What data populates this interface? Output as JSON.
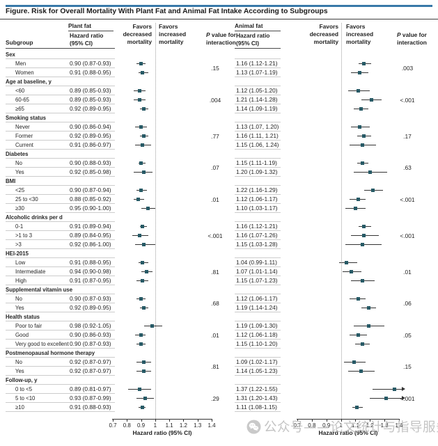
{
  "title": "Figure. Risk for Overall Mortality With Plant Fat and Animal Fat Intake According to Subgroups",
  "columns": {
    "subgroup": "Subgroup",
    "panels": [
      {
        "name": "Plant fat",
        "hr_lines": [
          "Hazard ratio",
          "(95% CI)"
        ],
        "favors_decreased": [
          "Favors",
          "decreased",
          "mortality"
        ],
        "favors_increased": [
          "Favors",
          "increased",
          "mortality"
        ],
        "p_lines": [
          "P value for",
          "interaction"
        ]
      },
      {
        "name": "Animal fat",
        "hr_lines": [
          "Hazard ratio",
          "(95% CI)"
        ],
        "favors_decreased": [
          "Favors",
          "decreased",
          "mortality"
        ],
        "favors_increased": [
          "Favors",
          "increased",
          "mortality"
        ],
        "p_lines": [
          "P value for",
          "interaction"
        ]
      }
    ]
  },
  "axis": {
    "min": 0.7,
    "max": 1.4,
    "reference": 1.0,
    "ticks": [
      "0.7",
      "0.8",
      "0.9",
      "1",
      "1.1",
      "1.2",
      "1.3",
      "1.4"
    ],
    "label": "Hazard ratio (95% CI)"
  },
  "chart_data": {
    "type": "forest",
    "panels": [
      "Plant fat",
      "Animal fat"
    ],
    "xlim": [
      0.7,
      1.4
    ],
    "reference_line": 1.0,
    "xlabel": "Hazard ratio (95% CI)",
    "groups": [
      {
        "label": "Sex",
        "p_values": {
          "plant": ".15",
          "animal": ".003"
        },
        "items": [
          {
            "label": "Men",
            "plant": {
              "text": "0.90 (0.87-0.93)",
              "est": 0.9,
              "lo": 0.87,
              "hi": 0.93
            },
            "animal": {
              "text": "1.16 (1.12-1.21)",
              "est": 1.16,
              "lo": 1.12,
              "hi": 1.21
            }
          },
          {
            "label": "Women",
            "plant": {
              "text": "0.91 (0.88-0.95)",
              "est": 0.91,
              "lo": 0.88,
              "hi": 0.95
            },
            "animal": {
              "text": "1.13 (1.07-1.19)",
              "est": 1.13,
              "lo": 1.07,
              "hi": 1.19
            }
          }
        ]
      },
      {
        "label": "Age at baseline, y",
        "p_values": {
          "plant": ".004",
          "animal": "<.001"
        },
        "items": [
          {
            "label": "<60",
            "plant": {
              "text": "0.89 (0.85-0.93)",
              "est": 0.89,
              "lo": 0.85,
              "hi": 0.93
            },
            "animal": {
              "text": "1.12 (1.05-1.20)",
              "est": 1.12,
              "lo": 1.05,
              "hi": 1.2
            }
          },
          {
            "label": "60-65",
            "plant": {
              "text": "0.89 (0.85-0.93)",
              "est": 0.89,
              "lo": 0.85,
              "hi": 0.93
            },
            "animal": {
              "text": "1.21 (1.14-1.28)",
              "est": 1.21,
              "lo": 1.14,
              "hi": 1.28
            }
          },
          {
            "label": "≥65",
            "plant": {
              "text": "0.92 (0.89-0.95)",
              "est": 0.92,
              "lo": 0.89,
              "hi": 0.95
            },
            "animal": {
              "text": "1.14 (1.09-1.19)",
              "est": 1.14,
              "lo": 1.09,
              "hi": 1.19
            }
          }
        ]
      },
      {
        "label": "Smoking status",
        "p_values": {
          "plant": ".77",
          "animal": ".17"
        },
        "items": [
          {
            "label": "Never",
            "plant": {
              "text": "0.90 (0.86-0.94)",
              "est": 0.9,
              "lo": 0.86,
              "hi": 0.94
            },
            "animal": {
              "text": "1.13 (1.07, 1.20)",
              "est": 1.13,
              "lo": 1.07,
              "hi": 1.2
            }
          },
          {
            "label": "Former",
            "plant": {
              "text": "0.92 (0.89-0.95)",
              "est": 0.92,
              "lo": 0.89,
              "hi": 0.95
            },
            "animal": {
              "text": "1.16 (1.11, 1.21)",
              "est": 1.16,
              "lo": 1.11,
              "hi": 1.21
            }
          },
          {
            "label": "Current",
            "plant": {
              "text": "0.91 (0.86-0.97)",
              "est": 0.91,
              "lo": 0.86,
              "hi": 0.97
            },
            "animal": {
              "text": "1.15 (1.06, 1.24)",
              "est": 1.15,
              "lo": 1.06,
              "hi": 1.24
            }
          }
        ]
      },
      {
        "label": "Diabetes",
        "p_values": {
          "plant": ".07",
          "animal": ".63"
        },
        "items": [
          {
            "label": "No",
            "plant": {
              "text": "0.90 (0.88-0.93)",
              "est": 0.9,
              "lo": 0.88,
              "hi": 0.93
            },
            "animal": {
              "text": "1.15 (1.11-1.19)",
              "est": 1.15,
              "lo": 1.11,
              "hi": 1.19
            }
          },
          {
            "label": "Yes",
            "plant": {
              "text": "0.92 (0.85-0.98)",
              "est": 0.92,
              "lo": 0.85,
              "hi": 0.98
            },
            "animal": {
              "text": "1.20 (1.09-1.32)",
              "est": 1.2,
              "lo": 1.09,
              "hi": 1.32
            }
          }
        ]
      },
      {
        "label": "BMI",
        "p_values": {
          "plant": ".01",
          "animal": "<.001"
        },
        "items": [
          {
            "label": "<25",
            "plant": {
              "text": "0.90 (0.87-0.94)",
              "est": 0.9,
              "lo": 0.87,
              "hi": 0.94
            },
            "animal": {
              "text": "1.22 (1.16-1.29)",
              "est": 1.22,
              "lo": 1.16,
              "hi": 1.29
            }
          },
          {
            "label": "25 to <30",
            "plant": {
              "text": "0.88 (0.85-0.92)",
              "est": 0.88,
              "lo": 0.85,
              "hi": 0.92
            },
            "animal": {
              "text": "1.12 (1.06-1.17)",
              "est": 1.12,
              "lo": 1.06,
              "hi": 1.17
            }
          },
          {
            "label": "≥30",
            "plant": {
              "text": "0.95 (0.90-1.00)",
              "est": 0.95,
              "lo": 0.9,
              "hi": 1.0
            },
            "animal": {
              "text": "1.10 (1.03-1.17)",
              "est": 1.1,
              "lo": 1.03,
              "hi": 1.17
            }
          }
        ]
      },
      {
        "label": "Alcoholic drinks per d",
        "p_values": {
          "plant": "<.001",
          "animal": "<.001"
        },
        "items": [
          {
            "label": "0-1",
            "plant": {
              "text": "0.91 (0.89-0.94)",
              "est": 0.91,
              "lo": 0.89,
              "hi": 0.94
            },
            "animal": {
              "text": "1.16 (1.12-1.21)",
              "est": 1.16,
              "lo": 1.12,
              "hi": 1.21
            }
          },
          {
            "label": ">1 to 3",
            "plant": {
              "text": "0.89 (0.84-0.95)",
              "est": 0.89,
              "lo": 0.84,
              "hi": 0.95
            },
            "animal": {
              "text": "1.16 (1.07-1.26)",
              "est": 1.16,
              "lo": 1.07,
              "hi": 1.26
            }
          },
          {
            "label": ">3",
            "plant": {
              "text": "0.92 (0.86-1.00)",
              "est": 0.92,
              "lo": 0.86,
              "hi": 1.0
            },
            "animal": {
              "text": "1.15 (1.03-1.28)",
              "est": 1.15,
              "lo": 1.03,
              "hi": 1.28
            }
          }
        ]
      },
      {
        "label": "HEI-2015",
        "p_values": {
          "plant": ".81",
          "animal": ".01"
        },
        "items": [
          {
            "label": "Low",
            "plant": {
              "text": "0.91 (0.88-0.95)",
              "est": 0.91,
              "lo": 0.88,
              "hi": 0.95
            },
            "animal": {
              "text": "1.04 (0.99-1.11)",
              "est": 1.04,
              "lo": 0.99,
              "hi": 1.11
            }
          },
          {
            "label": "Intermediate",
            "plant": {
              "text": "0.94 (0.90-0.98)",
              "est": 0.94,
              "lo": 0.9,
              "hi": 0.98
            },
            "animal": {
              "text": "1.07 (1.01-1.14)",
              "est": 1.07,
              "lo": 1.01,
              "hi": 1.14
            }
          },
          {
            "label": "High",
            "plant": {
              "text": "0.91 (0.87-0.95)",
              "est": 0.91,
              "lo": 0.87,
              "hi": 0.95
            },
            "animal": {
              "text": "1.15 (1.07-1.23)",
              "est": 1.15,
              "lo": 1.07,
              "hi": 1.23
            }
          }
        ]
      },
      {
        "label": "Supplemental vitamin use",
        "p_values": {
          "plant": ".68",
          "animal": ".06"
        },
        "items": [
          {
            "label": "No",
            "plant": {
              "text": "0.90 (0.87-0.93)",
              "est": 0.9,
              "lo": 0.87,
              "hi": 0.93
            },
            "animal": {
              "text": "1.12 (1.06-1.17)",
              "est": 1.12,
              "lo": 1.06,
              "hi": 1.17
            }
          },
          {
            "label": "Yes",
            "plant": {
              "text": "0.92 (0.89-0.95)",
              "est": 0.92,
              "lo": 0.89,
              "hi": 0.95
            },
            "animal": {
              "text": "1.19 (1.14-1.24)",
              "est": 1.19,
              "lo": 1.14,
              "hi": 1.24
            }
          }
        ]
      },
      {
        "label": "Health status",
        "p_values": {
          "plant": ".01",
          "animal": ".05"
        },
        "items": [
          {
            "label": "Poor to fair",
            "plant": {
              "text": "0.98 (0.92-1.05)",
              "est": 0.98,
              "lo": 0.92,
              "hi": 1.05
            },
            "animal": {
              "text": "1.19 (1.09-1.30)",
              "est": 1.19,
              "lo": 1.09,
              "hi": 1.3
            }
          },
          {
            "label": "Good",
            "plant": {
              "text": "0.90 (0.86-0.93)",
              "est": 0.9,
              "lo": 0.86,
              "hi": 0.93
            },
            "animal": {
              "text": "1.12 (1.06-1.18)",
              "est": 1.12,
              "lo": 1.06,
              "hi": 1.18
            }
          },
          {
            "label": "Very good to excellent",
            "plant": {
              "text": "0.90 (0.87-0.93)",
              "est": 0.9,
              "lo": 0.87,
              "hi": 0.93
            },
            "animal": {
              "text": "1.15 (1.10-1.20)",
              "est": 1.15,
              "lo": 1.1,
              "hi": 1.2
            }
          }
        ]
      },
      {
        "label": "Postmenopausal hormone therapy",
        "p_values": {
          "plant": ".81",
          "animal": ".15"
        },
        "items": [
          {
            "label": "No",
            "plant": {
              "text": "0.92 (0.87-0.97)",
              "est": 0.92,
              "lo": 0.87,
              "hi": 0.97
            },
            "animal": {
              "text": "1.09 (1.02-1.17)",
              "est": 1.09,
              "lo": 1.02,
              "hi": 1.17
            }
          },
          {
            "label": "Yes",
            "plant": {
              "text": "0.92 (0.87-0.97)",
              "est": 0.92,
              "lo": 0.87,
              "hi": 0.97
            },
            "animal": {
              "text": "1.14 (1.05-1.23)",
              "est": 1.14,
              "lo": 1.05,
              "hi": 1.23
            }
          }
        ]
      },
      {
        "label": "Follow-up, y",
        "p_values": {
          "plant": ".29",
          "animal": "<.001"
        },
        "items": [
          {
            "label": "0 to <5",
            "plant": {
              "text": "0.89 (0.81-0.97)",
              "est": 0.89,
              "lo": 0.81,
              "hi": 0.97
            },
            "animal": {
              "text": "1.37 (1.22-1.55)",
              "est": 1.37,
              "lo": 1.22,
              "hi": 1.55
            }
          },
          {
            "label": "5 to <10",
            "plant": {
              "text": "0.93 (0.87-0.99)",
              "est": 0.93,
              "lo": 0.87,
              "hi": 0.99
            },
            "animal": {
              "text": "1.31 (1.20-1.43)",
              "est": 1.31,
              "lo": 1.2,
              "hi": 1.43
            }
          },
          {
            "label": "≥10",
            "plant": {
              "text": "0.91 (0.88-0.93)",
              "est": 0.91,
              "lo": 0.88,
              "hi": 0.93
            },
            "animal": {
              "text": "1.11 (1.08-1.15)",
              "est": 1.11,
              "lo": 1.08,
              "hi": 1.15
            }
          }
        ]
      }
    ]
  },
  "watermark": {
    "icon": "wechat-icon",
    "text": "公众号——论文统计与指导服务"
  },
  "colors": {
    "accent_blue": "#3878a8",
    "marker": "#275a66",
    "ci_line": "#333333",
    "row_line": "#cccccc",
    "watermark": "#c4c4c4"
  }
}
